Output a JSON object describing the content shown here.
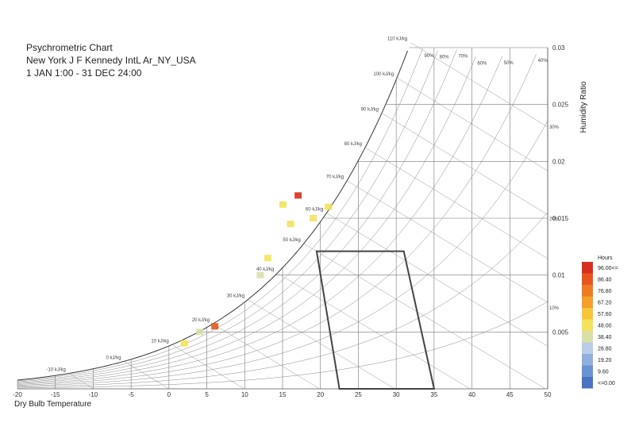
{
  "chart_data": {
    "type": "heatmap",
    "title": "Psychrometric Chart",
    "subtitle_lines": [
      "New York J F Kennedy IntL Ar_NY_USA",
      "1 JAN 1:00 - 31 DEC 24:00"
    ],
    "xlabel": "Dry Bulb Temperature",
    "ylabel": "Humidity Ratio",
    "xlim": [
      -20,
      50
    ],
    "ylim": [
      0,
      0.03
    ],
    "x_ticks": [
      "-20",
      "-15",
      "-10",
      "-5",
      "0",
      "5",
      "10",
      "15",
      "20",
      "25",
      "30",
      "35",
      "40",
      "45",
      "50"
    ],
    "y_ticks": [
      "0.005",
      "0.01",
      "0.015",
      "0.02",
      "0.025",
      "0.03"
    ],
    "rh_labels": [
      "90%",
      "80%",
      "70%",
      "60%",
      "50%",
      "40%",
      "30%",
      "20%",
      "10%"
    ],
    "enthalpy_labels": [
      "-10 kJ/kg",
      "0 kJ/kg",
      "10 kJ/kg",
      "20 kJ/kg",
      "30 kJ/kg",
      "40 kJ/kg",
      "50 kJ/kg",
      "60 kJ/kg",
      "70 kJ/kg",
      "80 kJ/kg",
      "90 kJ/kg",
      "100 kJ/kg",
      "110 kJ/kg"
    ],
    "legend": {
      "title": "Hours",
      "labels": [
        "96.00<=",
        "86.40",
        "76.80",
        "67.20",
        "57.60",
        "48.00",
        "38.40",
        "28.80",
        "19.20",
        "9.60",
        "<=0.00"
      ],
      "colors": [
        "#d7301f",
        "#e8561e",
        "#ef7a22",
        "#f4a02a",
        "#f6c739",
        "#f2e35a",
        "#d9dfa8",
        "#b9cde6",
        "#8fb0df",
        "#6a93d2",
        "#4a74bf"
      ]
    },
    "comfort_zone": {
      "temperature": [
        19.5,
        31.0,
        35.0,
        22.5
      ],
      "humidity_ratio": [
        0.0121,
        0.0121,
        0.0,
        0.0
      ]
    },
    "cells": [
      {
        "t": 15,
        "w": 0.0162,
        "hours": 50
      },
      {
        "t": 17,
        "w": 0.017,
        "hours": 98
      },
      {
        "t": 16,
        "w": 0.0145,
        "hours": 52
      },
      {
        "t": 19,
        "w": 0.015,
        "hours": 48
      },
      {
        "t": 21,
        "w": 0.016,
        "hours": 45
      },
      {
        "t": 13,
        "w": 0.0115,
        "hours": 50
      },
      {
        "t": 12,
        "w": 0.01,
        "hours": 40
      },
      {
        "t": 6,
        "w": 0.0055,
        "hours": 88
      },
      {
        "t": 4,
        "w": 0.005,
        "hours": 40
      },
      {
        "t": 2,
        "w": 0.004,
        "hours": 45
      }
    ]
  }
}
